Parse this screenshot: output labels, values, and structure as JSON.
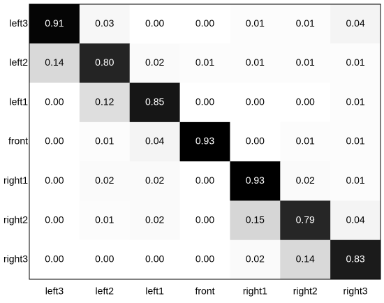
{
  "chart_data": {
    "type": "heatmap",
    "x_categories": [
      "left3",
      "left2",
      "left1",
      "front",
      "right1",
      "right2",
      "right3"
    ],
    "y_categories": [
      "left3",
      "left2",
      "left1",
      "front",
      "right1",
      "right2",
      "right3"
    ],
    "values": [
      [
        0.91,
        0.03,
        0.0,
        0.0,
        0.01,
        0.01,
        0.04
      ],
      [
        0.14,
        0.8,
        0.02,
        0.01,
        0.01,
        0.01,
        0.01
      ],
      [
        0.0,
        0.12,
        0.85,
        0.0,
        0.0,
        0.0,
        0.01
      ],
      [
        0.0,
        0.01,
        0.04,
        0.93,
        0.0,
        0.01,
        0.01
      ],
      [
        0.0,
        0.02,
        0.02,
        0.0,
        0.93,
        0.02,
        0.01
      ],
      [
        0.0,
        0.01,
        0.02,
        0.0,
        0.15,
        0.79,
        0.04
      ],
      [
        0.0,
        0.0,
        0.0,
        0.0,
        0.02,
        0.14,
        0.83
      ]
    ],
    "value_labels": [
      [
        "0.91",
        "0.03",
        "0.00",
        "0.00",
        "0.01",
        "0.01",
        "0.04"
      ],
      [
        "0.14",
        "0.80",
        "0.02",
        "0.01",
        "0.01",
        "0.01",
        "0.01"
      ],
      [
        "0.00",
        "0.12",
        "0.85",
        "0.00",
        "0.00",
        "0.00",
        "0.01"
      ],
      [
        "0.00",
        "0.01",
        "0.04",
        "0.93",
        "0.00",
        "0.01",
        "0.01"
      ],
      [
        "0.00",
        "0.02",
        "0.02",
        "0.00",
        "0.93",
        "0.02",
        "0.01"
      ],
      [
        "0.00",
        "0.01",
        "0.02",
        "0.00",
        "0.15",
        "0.79",
        "0.04"
      ],
      [
        "0.00",
        "0.00",
        "0.00",
        "0.00",
        "0.02",
        "0.14",
        "0.83"
      ]
    ],
    "color_low": "#ffffff",
    "color_high": "#000000"
  }
}
